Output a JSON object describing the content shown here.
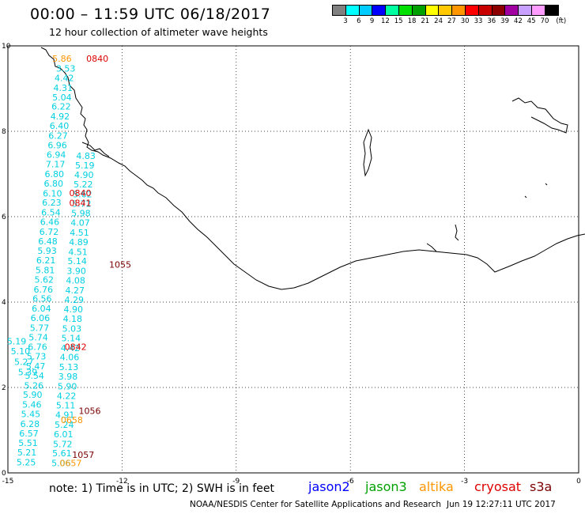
{
  "header": {
    "title": "00:00 – 11:59 UTC 06/18/2017",
    "subtitle": "12 hour collection of altimeter wave heights"
  },
  "colorbar": {
    "colors": [
      "#808080",
      "#00ffff",
      "#00ccff",
      "#0000ff",
      "#00ffa0",
      "#00e000",
      "#00a000",
      "#ffff00",
      "#ffc800",
      "#ff9600",
      "#ff0000",
      "#c80000",
      "#8c0000",
      "#a000a0",
      "#c8a0ff",
      "#ff9cff",
      "#000000"
    ],
    "labels": [
      "3",
      "6",
      "9",
      "12",
      "15",
      "18",
      "21",
      "24",
      "27",
      "30",
      "33",
      "36",
      "39",
      "42",
      "45",
      "70",
      "(ft)"
    ]
  },
  "chart_data": {
    "type": "scatter",
    "title": "00:00 – 11:59 UTC 06/18/2017",
    "xlim": [
      -15,
      0
    ],
    "ylim": [
      0,
      10
    ],
    "x_ticks": [
      "-15",
      "-12",
      "-9",
      "-6",
      "-3",
      "0"
    ],
    "y_ticks": [
      "0",
      "2",
      "4",
      "6",
      "8",
      "10"
    ],
    "series": [
      {
        "name": "jason3",
        "color": "#00d0e0",
        "points": [
          {
            "lon": -13.48,
            "lat": 9.47,
            "label": "3.53"
          },
          {
            "lon": -13.52,
            "lat": 9.25,
            "label": "4.42"
          },
          {
            "lon": -13.55,
            "lat": 9.02,
            "label": "4.31"
          },
          {
            "lon": -13.58,
            "lat": 8.8,
            "label": "5.04"
          },
          {
            "lon": -13.6,
            "lat": 8.58,
            "label": "6.22"
          },
          {
            "lon": -13.63,
            "lat": 8.35,
            "label": "4.92"
          },
          {
            "lon": -13.65,
            "lat": 8.13,
            "label": "6.40"
          },
          {
            "lon": -13.68,
            "lat": 7.9,
            "label": "6.27"
          },
          {
            "lon": -13.7,
            "lat": 7.68,
            "label": "6.96"
          },
          {
            "lon": -13.73,
            "lat": 7.45,
            "label": "6.94"
          },
          {
            "lon": -13.75,
            "lat": 7.23,
            "label": "7.17"
          },
          {
            "lon": -13.78,
            "lat": 7.0,
            "label": "6.80"
          },
          {
            "lon": -13.8,
            "lat": 6.78,
            "label": "6.80"
          },
          {
            "lon": -13.83,
            "lat": 6.55,
            "label": "6.10"
          },
          {
            "lon": -13.85,
            "lat": 6.33,
            "label": "6.23"
          },
          {
            "lon": -13.87,
            "lat": 6.1,
            "label": "6.54"
          },
          {
            "lon": -13.9,
            "lat": 5.88,
            "label": "6.46"
          },
          {
            "lon": -13.92,
            "lat": 5.65,
            "label": "6.72"
          },
          {
            "lon": -13.95,
            "lat": 5.43,
            "label": "6.48"
          },
          {
            "lon": -13.97,
            "lat": 5.2,
            "label": "5.93"
          },
          {
            "lon": -14.0,
            "lat": 4.98,
            "label": "6.21"
          },
          {
            "lon": -14.02,
            "lat": 4.75,
            "label": "5.81"
          },
          {
            "lon": -14.05,
            "lat": 4.53,
            "label": "5.62"
          },
          {
            "lon": -14.07,
            "lat": 4.3,
            "label": "6.76"
          },
          {
            "lon": -14.1,
            "lat": 4.08,
            "label": "6.56"
          },
          {
            "lon": -14.12,
            "lat": 3.85,
            "label": "6.04"
          },
          {
            "lon": -14.15,
            "lat": 3.63,
            "label": "6.06"
          },
          {
            "lon": -14.17,
            "lat": 3.4,
            "label": "5.77"
          },
          {
            "lon": -14.2,
            "lat": 3.18,
            "label": "5.74"
          },
          {
            "lon": -14.22,
            "lat": 2.95,
            "label": "6.76"
          },
          {
            "lon": -14.25,
            "lat": 2.73,
            "label": "5.73"
          },
          {
            "lon": -14.27,
            "lat": 2.5,
            "label": "5.47"
          },
          {
            "lon": -14.3,
            "lat": 2.28,
            "label": "5.54"
          },
          {
            "lon": -14.32,
            "lat": 2.05,
            "label": "5.26"
          },
          {
            "lon": -14.35,
            "lat": 1.83,
            "label": "5.90"
          },
          {
            "lon": -14.37,
            "lat": 1.6,
            "label": "5.46"
          },
          {
            "lon": -14.4,
            "lat": 1.38,
            "label": "5.45"
          },
          {
            "lon": -14.42,
            "lat": 1.15,
            "label": "6.28"
          },
          {
            "lon": -14.45,
            "lat": 0.93,
            "label": "6.57"
          },
          {
            "lon": -14.47,
            "lat": 0.7,
            "label": "5.51"
          },
          {
            "lon": -14.5,
            "lat": 0.48,
            "label": "5.21"
          },
          {
            "lon": -14.52,
            "lat": 0.25,
            "label": "5.25"
          },
          {
            "lon": -14.77,
            "lat": 3.08,
            "label": "5.19"
          },
          {
            "lon": -14.67,
            "lat": 2.85,
            "label": "5.10"
          },
          {
            "lon": -14.58,
            "lat": 2.6,
            "label": "5.27"
          },
          {
            "lon": -14.48,
            "lat": 2.36,
            "label": "5.39"
          },
          {
            "lon": -12.95,
            "lat": 7.43,
            "label": "4.83"
          },
          {
            "lon": -12.98,
            "lat": 7.2,
            "label": "5.19"
          },
          {
            "lon": -13.0,
            "lat": 6.98,
            "label": "4.90"
          },
          {
            "lon": -13.02,
            "lat": 6.76,
            "label": "5.22"
          },
          {
            "lon": -13.04,
            "lat": 6.53,
            "label": "5.62"
          },
          {
            "lon": -13.06,
            "lat": 6.31,
            "label": "5.72"
          },
          {
            "lon": -13.08,
            "lat": 6.08,
            "label": "5.98"
          },
          {
            "lon": -13.1,
            "lat": 5.86,
            "label": "4.07"
          },
          {
            "lon": -13.12,
            "lat": 5.63,
            "label": "4.51"
          },
          {
            "lon": -13.14,
            "lat": 5.41,
            "label": "4.89"
          },
          {
            "lon": -13.16,
            "lat": 5.18,
            "label": "4.51"
          },
          {
            "lon": -13.18,
            "lat": 4.96,
            "label": "5.14"
          },
          {
            "lon": -13.2,
            "lat": 4.73,
            "label": "3.90"
          },
          {
            "lon": -13.22,
            "lat": 4.51,
            "label": "4.08"
          },
          {
            "lon": -13.24,
            "lat": 4.28,
            "label": "4.27"
          },
          {
            "lon": -13.26,
            "lat": 4.06,
            "label": "4.29"
          },
          {
            "lon": -13.28,
            "lat": 3.83,
            "label": "4.90"
          },
          {
            "lon": -13.3,
            "lat": 3.61,
            "label": "4.18"
          },
          {
            "lon": -13.32,
            "lat": 3.38,
            "label": "5.03"
          },
          {
            "lon": -13.34,
            "lat": 3.16,
            "label": "5.14"
          },
          {
            "lon": -13.36,
            "lat": 2.93,
            "label": "4.42"
          },
          {
            "lon": -13.38,
            "lat": 2.71,
            "label": "4.06"
          },
          {
            "lon": -13.4,
            "lat": 2.48,
            "label": "5.13"
          },
          {
            "lon": -13.42,
            "lat": 2.26,
            "label": "3.98"
          },
          {
            "lon": -13.44,
            "lat": 2.03,
            "label": "5.90"
          },
          {
            "lon": -13.46,
            "lat": 1.81,
            "label": "4.22"
          },
          {
            "lon": -13.48,
            "lat": 1.58,
            "label": "5.11"
          },
          {
            "lon": -13.5,
            "lat": 1.36,
            "label": "4.91"
          },
          {
            "lon": -13.52,
            "lat": 1.13,
            "label": "5.24"
          },
          {
            "lon": -13.54,
            "lat": 0.91,
            "label": "6.01"
          },
          {
            "lon": -13.56,
            "lat": 0.68,
            "label": "5.72"
          },
          {
            "lon": -13.58,
            "lat": 0.46,
            "label": "5.61"
          },
          {
            "lon": -13.6,
            "lat": 0.23,
            "label": "5.06"
          }
        ]
      },
      {
        "name": "altika",
        "color": "#ff9600",
        "points": [
          {
            "lon": -13.58,
            "lat": 9.7,
            "label": "5.86"
          },
          {
            "lon": -13.32,
            "lat": 1.24,
            "label": "0658"
          },
          {
            "lon": -13.35,
            "lat": 0.23,
            "label": "0657"
          }
        ]
      },
      {
        "name": "cryosat",
        "color": "#dd0000",
        "points": [
          {
            "lon": -12.65,
            "lat": 9.7,
            "label": "0840"
          },
          {
            "lon": -13.1,
            "lat": 6.56,
            "label": "0840"
          },
          {
            "lon": -13.1,
            "lat": 6.32,
            "label": "0841"
          },
          {
            "lon": -13.22,
            "lat": 2.95,
            "label": "0842"
          }
        ]
      },
      {
        "name": "s3a",
        "color": "#7a0000",
        "points": [
          {
            "lon": -12.05,
            "lat": 4.88,
            "label": "1055"
          },
          {
            "lon": -12.85,
            "lat": 1.45,
            "label": "1056"
          },
          {
            "lon": -13.02,
            "lat": 0.43,
            "label": "1057"
          }
        ]
      }
    ]
  },
  "footer": {
    "note": "note: 1) Time is in UTC; 2) SWH is in feet",
    "satellites": [
      {
        "name": "jason2",
        "color": "#0000ff"
      },
      {
        "name": "jason3",
        "color": "#00a000"
      },
      {
        "name": "altika",
        "color": "#ff9600"
      },
      {
        "name": "cryosat",
        "color": "#dd0000"
      },
      {
        "name": "s3a",
        "color": "#7a0000"
      }
    ],
    "credit": "NOAA/NESDIS Center for Satellite Applications and Research",
    "timestamp": "Jun 19 12:27:11 UTC 2017"
  }
}
